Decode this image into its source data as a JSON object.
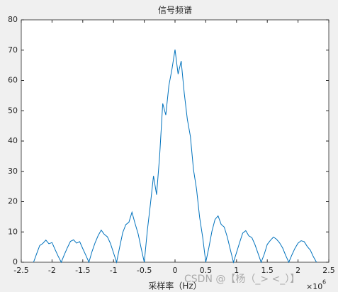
{
  "chart_data": {
    "type": "line",
    "title": "信号频谱",
    "x_label": "采样率（Hz）",
    "x_multiplier": "×10",
    "x_multiplier_exponent": "6",
    "watermark": "CSDN @【杨（_> <_）】",
    "x": [
      -2.3,
      -2.25,
      -2.2,
      -2.15,
      -2.1,
      -2.05,
      -2,
      -1.95,
      -1.9,
      -1.85,
      -1.8,
      -1.75,
      -1.7,
      -1.65,
      -1.6,
      -1.55,
      -1.5,
      -1.45,
      -1.4,
      -1.35,
      -1.3,
      -1.25,
      -1.2,
      -1.15,
      -1.1,
      -1.05,
      -1,
      -0.95,
      -0.9,
      -0.85,
      -0.8,
      -0.75,
      -0.7,
      -0.65,
      -0.6,
      -0.55,
      -0.5,
      -0.45,
      -0.4,
      -0.35,
      -0.3,
      -0.25,
      -0.2,
      -0.15,
      -0.1,
      -0.05,
      0,
      0.05,
      0.1,
      0.15,
      0.2,
      0.25,
      0.3,
      0.35,
      0.4,
      0.45,
      0.5,
      0.55,
      0.6,
      0.65,
      0.7,
      0.75,
      0.8,
      0.85,
      0.9,
      0.95,
      1,
      1.05,
      1.1,
      1.15,
      1.2,
      1.25,
      1.3,
      1.35,
      1.4,
      1.45,
      1.5,
      1.55,
      1.6,
      1.65,
      1.7,
      1.75,
      1.8,
      1.85,
      1.9,
      1.95,
      2,
      2.05,
      2.1,
      2.15,
      2.2,
      2.25,
      2.3
    ],
    "series": [
      {
        "color": "#0072bd",
        "values": [
          0,
          2.8,
          5.5,
          6.2,
          7.3,
          6.1,
          6.5,
          4.2,
          2.0,
          0,
          2.5,
          4.8,
          6.9,
          7.4,
          6.3,
          6.8,
          4.5,
          2.3,
          0,
          3.5,
          6.4,
          8.8,
          10.6,
          9.2,
          8.4,
          6.2,
          3.1,
          0,
          5.0,
          9.8,
          12.4,
          13.2,
          16.5,
          12.8,
          9.4,
          4.6,
          0,
          10.5,
          19.2,
          28.5,
          22.3,
          35.1,
          52.4,
          48.6,
          58.3,
          63.7,
          70.2,
          62.1,
          66.4,
          55.8,
          47.2,
          41.5,
          30.6,
          24.1,
          14.8,
          8.2,
          0,
          4.8,
          10.2,
          14.1,
          15.3,
          12.5,
          11.6,
          8.3,
          4.1,
          0,
          3.2,
          6.5,
          9.6,
          10.4,
          8.7,
          8.1,
          5.8,
          2.9,
          0,
          2.6,
          5.9,
          7.2,
          8.3,
          7.6,
          6.4,
          4.7,
          2.2,
          0,
          2.4,
          4.6,
          6.3,
          7.1,
          6.8,
          5.2,
          4.0,
          1.8,
          0
        ]
      }
    ],
    "xlim": [
      -2.5,
      2.5
    ],
    "xticks": [
      -2.5,
      -2,
      -1.5,
      -1,
      -0.5,
      0,
      0.5,
      1,
      1.5,
      2,
      2.5
    ],
    "ylim": [
      0,
      80
    ],
    "yticks": [
      0,
      10,
      20,
      30,
      40,
      50,
      60,
      70,
      80
    ]
  }
}
